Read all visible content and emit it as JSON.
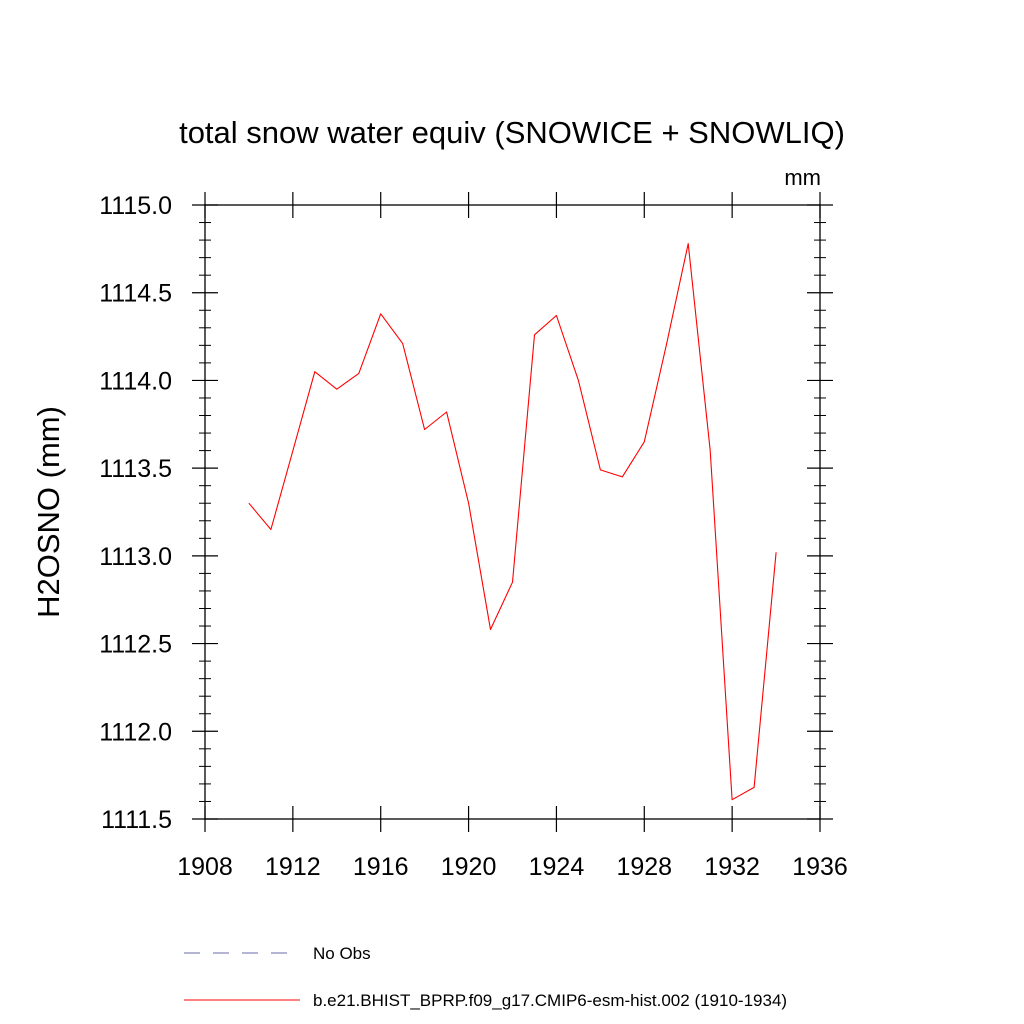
{
  "chart_data": {
    "type": "line",
    "title": "total snow water equiv (SNOWICE + SNOWLIQ)",
    "units": "mm",
    "xlabel": "",
    "ylabel": "H2OSNO  (mm)",
    "xlim": [
      1908,
      1936
    ],
    "ylim": [
      1111.5,
      1115.0
    ],
    "x_ticks": [
      1908,
      1912,
      1916,
      1920,
      1924,
      1928,
      1932,
      1936
    ],
    "y_ticks": [
      "1111.5",
      "1112.0",
      "1112.5",
      "1113.0",
      "1113.5",
      "1114.0",
      "1114.5",
      "1115.0"
    ],
    "y_tick_values": [
      1111.5,
      1112.0,
      1112.5,
      1113.0,
      1113.5,
      1114.0,
      1114.5,
      1115.0
    ],
    "grid": false,
    "series": [
      {
        "name": "b.e21.BHIST_BPRP.f09_g17.CMIP6-esm-hist.002 (1910-1934)",
        "color": "#ff0000",
        "x": [
          1910,
          1911,
          1912,
          1913,
          1914,
          1915,
          1916,
          1917,
          1918,
          1919,
          1920,
          1921,
          1922,
          1923,
          1924,
          1925,
          1926,
          1927,
          1928,
          1929,
          1930,
          1931,
          1932,
          1933,
          1934
        ],
        "values": [
          1113.3,
          1113.15,
          1113.6,
          1114.05,
          1113.95,
          1114.04,
          1114.38,
          1114.21,
          1113.72,
          1113.82,
          1113.3,
          1112.58,
          1112.85,
          1114.26,
          1114.37,
          1114.0,
          1113.49,
          1113.45,
          1113.65,
          1114.2,
          1114.78,
          1113.6,
          1111.61,
          1111.68,
          1113.02
        ]
      }
    ],
    "legend": [
      {
        "label": "No Obs",
        "style": "dashed",
        "color": "#6a6aaa"
      },
      {
        "label": "b.e21.BHIST_BPRP.f09_g17.CMIP6-esm-hist.002 (1910-1934)",
        "style": "solid",
        "color": "#ff0000"
      }
    ],
    "legend_position": "bottom"
  }
}
